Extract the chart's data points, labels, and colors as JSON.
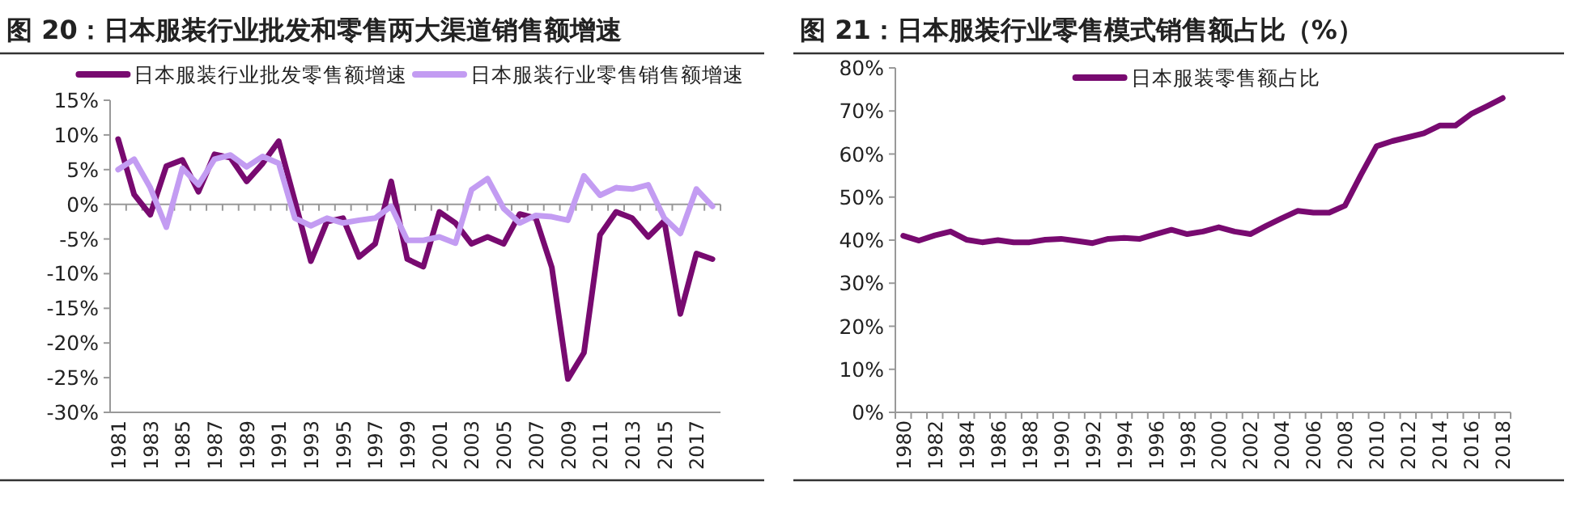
{
  "chart_data": [
    {
      "type": "line",
      "title": "图 20：日本服装行业批发和零售两大渠道销售额增速",
      "categories": [
        "1981",
        null,
        "1983",
        null,
        "1985",
        null,
        "1987",
        null,
        "1989",
        null,
        "1991",
        null,
        "1993",
        null,
        "1995",
        null,
        "1997",
        null,
        "1999",
        null,
        "2001",
        null,
        "2003",
        null,
        "2005",
        null,
        "2007",
        null,
        "2009",
        null,
        "2011",
        null,
        "2013",
        null,
        "2015",
        null,
        "2017",
        null
      ],
      "series": [
        {
          "name": "日本服装行业批发零售额增速",
          "color": "#780a70",
          "values": [
            9.4,
            1.4,
            -1.5,
            5.5,
            6.4,
            1.8,
            7.2,
            6.7,
            3.3,
            5.9,
            9.1,
            0.5,
            -8.2,
            -2.5,
            -2.0,
            -7.6,
            -5.7,
            3.3,
            -7.9,
            -9.0,
            -1.1,
            -2.7,
            -5.7,
            -4.7,
            -5.7,
            -1.4,
            -2.0,
            -9.1,
            -25.2,
            -21.4,
            -4.4,
            -1.1,
            -2.0,
            -4.7,
            -2.4,
            -15.8,
            -7.1,
            -7.9
          ]
        },
        {
          "name": "日本服装行业零售销售额增速",
          "color": "#c39cf2",
          "values": [
            5.0,
            6.5,
            2.4,
            -3.3,
            5.2,
            2.8,
            6.5,
            7.1,
            5.4,
            6.9,
            5.9,
            -2.0,
            -3.1,
            -2.0,
            -2.7,
            -2.3,
            -2.0,
            -0.3,
            -5.2,
            -5.2,
            -4.7,
            -5.6,
            2.1,
            3.7,
            -0.6,
            -2.7,
            -1.6,
            -1.8,
            -2.3,
            4.1,
            1.3,
            2.4,
            2.2,
            2.8,
            -2.0,
            -4.2,
            2.2,
            -0.3
          ]
        }
      ],
      "ylim": [
        -30,
        15
      ],
      "yticks": [
        {
          "value": -30,
          "label": "-30%"
        },
        {
          "value": -25,
          "label": "-25%"
        },
        {
          "value": -20,
          "label": "-20%"
        },
        {
          "value": -15,
          "label": "-15%"
        },
        {
          "value": -10,
          "label": "-10%"
        },
        {
          "value": -5,
          "label": "-5%"
        },
        {
          "value": 0,
          "label": "0%"
        },
        {
          "value": 5,
          "label": "5%"
        },
        {
          "value": 10,
          "label": "10%"
        },
        {
          "value": 15,
          "label": "15%"
        }
      ],
      "legend": "top"
    },
    {
      "type": "line",
      "title": "图 21：日本服装行业零售模式销售额占比（%）",
      "categories": [
        "1980",
        null,
        "1982",
        null,
        "1984",
        null,
        "1986",
        null,
        "1988",
        null,
        "1990",
        null,
        "1992",
        null,
        "1994",
        null,
        "1996",
        null,
        "1998",
        null,
        "2000",
        null,
        "2002",
        null,
        "2004",
        null,
        "2006",
        null,
        "2008",
        null,
        "2010",
        null,
        "2012",
        null,
        "2014",
        null,
        "2016",
        null,
        "2018"
      ],
      "series": [
        {
          "name": "日本服装零售额占比",
          "color": "#780a70",
          "values": [
            41.0,
            39.9,
            41.1,
            42.0,
            40.1,
            39.5,
            40.0,
            39.5,
            39.5,
            40.1,
            40.3,
            39.8,
            39.3,
            40.3,
            40.5,
            40.3,
            41.4,
            42.4,
            41.4,
            42.0,
            43.0,
            42.0,
            41.4,
            43.3,
            45.1,
            46.8,
            46.4,
            46.4,
            48.0,
            55.1,
            61.8,
            63.0,
            63.9,
            64.8,
            66.6,
            66.6,
            69.3,
            71.1,
            73.0
          ]
        }
      ],
      "ylim": [
        0,
        80
      ],
      "yticks": [
        {
          "value": 0,
          "label": "0%"
        },
        {
          "value": 10,
          "label": "10%"
        },
        {
          "value": 20,
          "label": "20%"
        },
        {
          "value": 30,
          "label": "30%"
        },
        {
          "value": 40,
          "label": "40%"
        },
        {
          "value": 50,
          "label": "50%"
        },
        {
          "value": 60,
          "label": "60%"
        },
        {
          "value": 70,
          "label": "70%"
        },
        {
          "value": 80,
          "label": "80%"
        }
      ],
      "legend": "top"
    }
  ]
}
